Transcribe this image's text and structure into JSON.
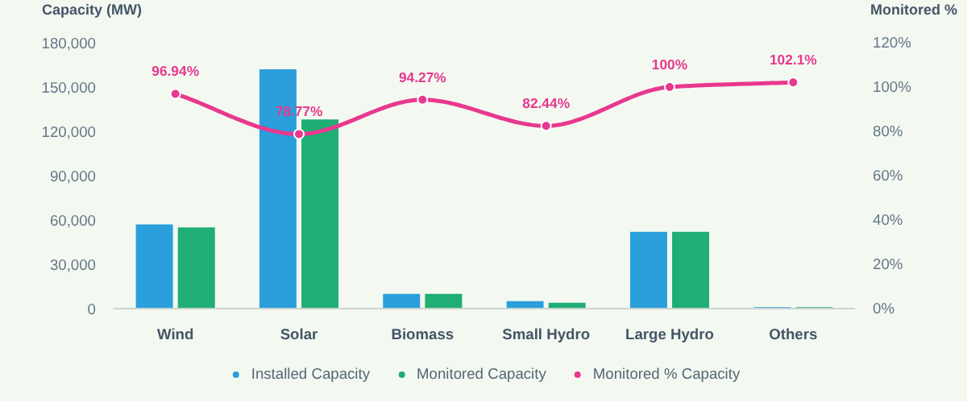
{
  "chart_data": {
    "type": "bar",
    "ylabel": "Capacity (MW)",
    "y2label": "Monitored %",
    "categories": [
      "Wind",
      "Solar",
      "Biomass",
      "Small Hydro",
      "Large Hydro",
      "Others"
    ],
    "series": [
      {
        "name": "Installed Capacity",
        "color": "#2a9fdc",
        "values": [
          57000,
          162000,
          10000,
          5000,
          52000,
          1000
        ]
      },
      {
        "name": "Monitored Capacity",
        "color": "#1fae74",
        "values": [
          55000,
          128000,
          10000,
          4000,
          52000,
          1000
        ]
      },
      {
        "name": "Monitored % Capacity",
        "type": "line",
        "axis": "y2",
        "color": "#e8388f",
        "marker": "circle",
        "values": [
          96.94,
          78.77,
          94.27,
          82.44,
          100,
          102.1
        ],
        "value_labels": [
          "96.94%",
          "78.77%",
          "94.27%",
          "82.44%",
          "100%",
          "102.1%"
        ]
      }
    ],
    "ylim": [
      0,
      180000
    ],
    "yticks": [
      {
        "value": 0,
        "label": "0"
      },
      {
        "value": 30000,
        "label": "30,000"
      },
      {
        "value": 60000,
        "label": "60,000"
      },
      {
        "value": 90000,
        "label": "90,000"
      },
      {
        "value": 120000,
        "label": "120,000"
      },
      {
        "value": 150000,
        "label": "150,000"
      },
      {
        "value": 180000,
        "label": "180,000"
      }
    ],
    "y2lim": [
      0,
      120
    ],
    "y2ticks": [
      {
        "value": 0,
        "label": "0%"
      },
      {
        "value": 20,
        "label": "20%"
      },
      {
        "value": 40,
        "label": "40%"
      },
      {
        "value": 60,
        "label": "60%"
      },
      {
        "value": 80,
        "label": "80%"
      },
      {
        "value": 100,
        "label": "100%"
      },
      {
        "value": 120,
        "label": "120%"
      }
    ],
    "grid": false,
    "legend": "bottom"
  }
}
